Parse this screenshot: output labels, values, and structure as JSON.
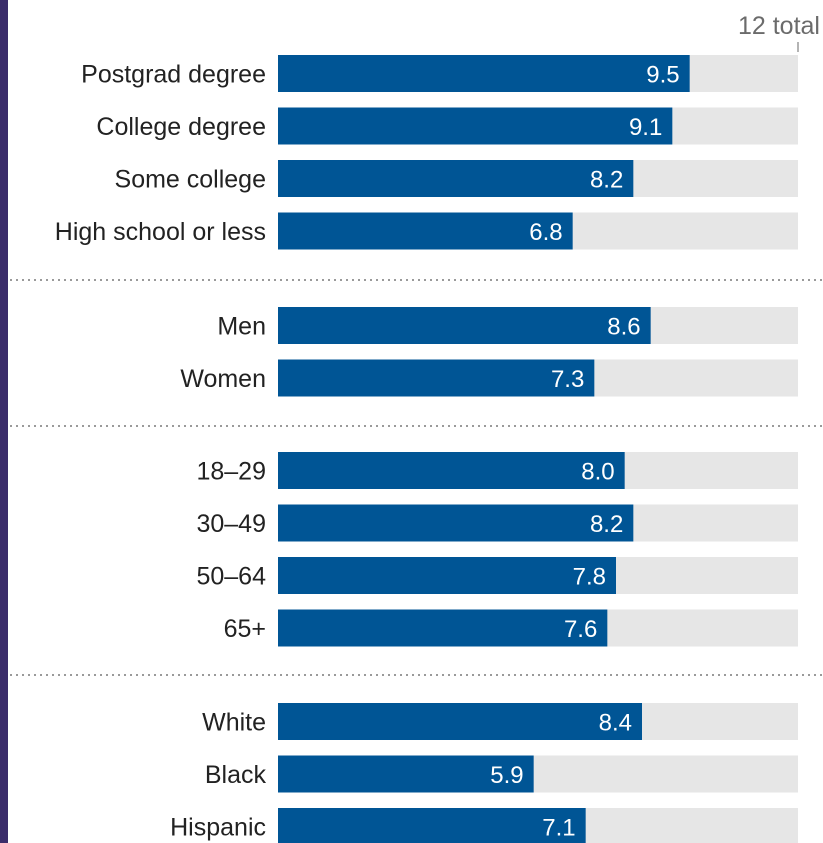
{
  "colors": {
    "bar": "#005595",
    "track": "#e6e6e6",
    "frame": "#3b2d6b",
    "divider": "#9a9a9a",
    "value_text": "#ffffff",
    "category_text": "#222222",
    "total_text": "#6b6b6b"
  },
  "chart_data": {
    "type": "bar",
    "orientation": "horizontal",
    "title": "",
    "xlabel": "",
    "ylabel": "",
    "xlim": [
      0,
      12
    ],
    "total_label": "12 total",
    "grid": false,
    "groups": [
      {
        "categories": [
          "Postgrad degree",
          "College degree",
          "Some college",
          "High school or less"
        ],
        "values": [
          9.5,
          9.1,
          8.2,
          6.8
        ],
        "value_labels": [
          "9.5",
          "9.1",
          "8.2",
          "6.8"
        ]
      },
      {
        "categories": [
          "Men",
          "Women"
        ],
        "values": [
          8.6,
          7.3
        ],
        "value_labels": [
          "8.6",
          "7.3"
        ]
      },
      {
        "categories": [
          "18–29",
          "30–49",
          "50–64",
          "65+"
        ],
        "values": [
          8.0,
          8.2,
          7.8,
          7.6
        ],
        "value_labels": [
          "8.0",
          "8.2",
          "7.8",
          "7.6"
        ]
      },
      {
        "categories": [
          "White",
          "Black",
          "Hispanic"
        ],
        "values": [
          8.4,
          5.9,
          7.1
        ],
        "value_labels": [
          "8.4",
          "5.9",
          "7.1"
        ]
      }
    ]
  }
}
